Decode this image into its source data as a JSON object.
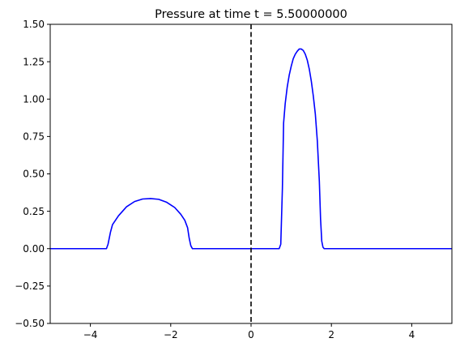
{
  "chart_data": {
    "type": "line",
    "title": "Pressure at time t =     5.50000000",
    "xlabel": "",
    "ylabel": "",
    "xlim": [
      -5,
      5
    ],
    "ylim": [
      -0.5,
      1.5
    ],
    "x_ticks": [
      -4,
      -2,
      0,
      2,
      4
    ],
    "x_tick_labels": [
      "−4",
      "−2",
      "0",
      "2",
      "4"
    ],
    "y_ticks": [
      -0.5,
      -0.25,
      0.0,
      0.25,
      0.5,
      0.75,
      1.0,
      1.25,
      1.5
    ],
    "y_tick_labels": [
      "−0.50",
      "−0.25",
      "0.00",
      "0.25",
      "0.50",
      "0.75",
      "1.00",
      "1.25",
      "1.50"
    ],
    "grid": false,
    "legend": "none",
    "series": [
      {
        "color": "#0000ff",
        "x": [
          -5.0,
          -3.6,
          -3.56,
          -3.5,
          -3.45,
          -3.3,
          -3.1,
          -2.9,
          -2.7,
          -2.5,
          -2.3,
          -2.1,
          -1.9,
          -1.75,
          -1.65,
          -1.58,
          -1.54,
          -1.5,
          -1.46,
          0.7,
          0.74,
          0.78,
          0.81,
          0.85,
          0.9,
          0.95,
          1.0,
          1.05,
          1.1,
          1.15,
          1.2,
          1.25,
          1.3,
          1.35,
          1.4,
          1.45,
          1.5,
          1.55,
          1.6,
          1.65,
          1.7,
          1.73,
          1.76,
          1.79,
          1.82,
          1.86,
          5.0
        ],
        "y": [
          0.0,
          0.0,
          0.03,
          0.11,
          0.16,
          0.22,
          0.28,
          0.315,
          0.332,
          0.335,
          0.33,
          0.31,
          0.275,
          0.23,
          0.19,
          0.14,
          0.07,
          0.02,
          0.0,
          0.0,
          0.03,
          0.4,
          0.84,
          0.97,
          1.08,
          1.16,
          1.22,
          1.27,
          1.3,
          1.32,
          1.335,
          1.335,
          1.325,
          1.3,
          1.26,
          1.2,
          1.12,
          1.02,
          0.9,
          0.72,
          0.45,
          0.2,
          0.05,
          0.01,
          0.0,
          0.0,
          0.0
        ]
      }
    ],
    "reference_line": {
      "x": 0,
      "style": "dashed",
      "color": "#000000"
    }
  }
}
